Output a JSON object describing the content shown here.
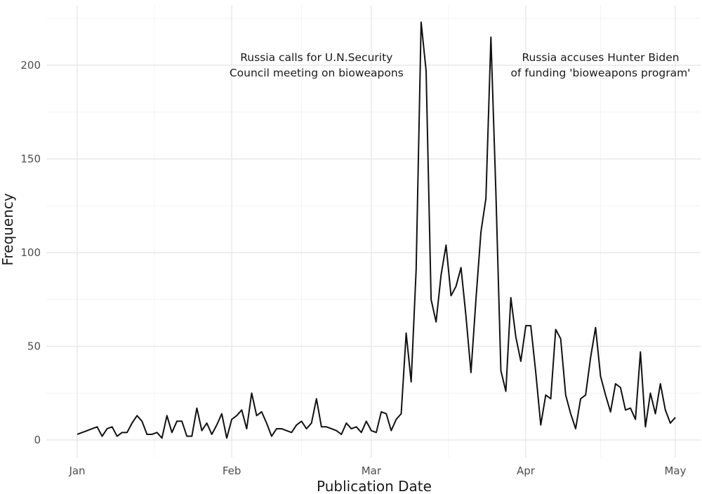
{
  "chart_data": {
    "type": "line",
    "xlabel": "Publication Date",
    "ylabel": "Frequency",
    "x_range": [
      "2022-01-01",
      "2022-04-30"
    ],
    "ylim": [
      0,
      225
    ],
    "grid": true,
    "x_ticks": [
      {
        "label": "Jan",
        "date": "2022-01-01"
      },
      {
        "label": "Feb",
        "date": "2022-02-01"
      },
      {
        "label": "Mar",
        "date": "2022-03-01"
      },
      {
        "label": "Apr",
        "date": "2022-04-01"
      },
      {
        "label": "May",
        "date": "2022-05-01"
      }
    ],
    "y_ticks": [
      0,
      50,
      100,
      150,
      200
    ],
    "annotations": [
      {
        "lines": [
          "Russia calls for U.N.Security",
          "Council meeting on bioweapons"
        ],
        "x": "2022-02-18",
        "y": 200
      },
      {
        "lines": [
          "Russia accuses Hunter Biden",
          "of funding 'bioweapons program'"
        ],
        "x": "2022-04-16",
        "y": 200
      }
    ],
    "series": [
      {
        "values": [
          {
            "x": "2022-01-01",
            "y": 3
          },
          {
            "x": "2022-01-02",
            "y": 4
          },
          {
            "x": "2022-01-03",
            "y": 5
          },
          {
            "x": "2022-01-04",
            "y": 6
          },
          {
            "x": "2022-01-05",
            "y": 7
          },
          {
            "x": "2022-01-06",
            "y": 2
          },
          {
            "x": "2022-01-07",
            "y": 6
          },
          {
            "x": "2022-01-08",
            "y": 7
          },
          {
            "x": "2022-01-09",
            "y": 2
          },
          {
            "x": "2022-01-10",
            "y": 4
          },
          {
            "x": "2022-01-11",
            "y": 4
          },
          {
            "x": "2022-01-12",
            "y": 9
          },
          {
            "x": "2022-01-13",
            "y": 13
          },
          {
            "x": "2022-01-14",
            "y": 10
          },
          {
            "x": "2022-01-15",
            "y": 3
          },
          {
            "x": "2022-01-16",
            "y": 3
          },
          {
            "x": "2022-01-17",
            "y": 4
          },
          {
            "x": "2022-01-18",
            "y": 1
          },
          {
            "x": "2022-01-19",
            "y": 13
          },
          {
            "x": "2022-01-20",
            "y": 4
          },
          {
            "x": "2022-01-21",
            "y": 10
          },
          {
            "x": "2022-01-22",
            "y": 10
          },
          {
            "x": "2022-01-23",
            "y": 2
          },
          {
            "x": "2022-01-24",
            "y": 2
          },
          {
            "x": "2022-01-25",
            "y": 17
          },
          {
            "x": "2022-01-26",
            "y": 5
          },
          {
            "x": "2022-01-27",
            "y": 9
          },
          {
            "x": "2022-01-28",
            "y": 3
          },
          {
            "x": "2022-01-29",
            "y": 8
          },
          {
            "x": "2022-01-30",
            "y": 14
          },
          {
            "x": "2022-01-31",
            "y": 1
          },
          {
            "x": "2022-02-01",
            "y": 11
          },
          {
            "x": "2022-02-02",
            "y": 13
          },
          {
            "x": "2022-02-03",
            "y": 16
          },
          {
            "x": "2022-02-04",
            "y": 6
          },
          {
            "x": "2022-02-05",
            "y": 25
          },
          {
            "x": "2022-02-06",
            "y": 13
          },
          {
            "x": "2022-02-07",
            "y": 15
          },
          {
            "x": "2022-02-08",
            "y": 9
          },
          {
            "x": "2022-02-09",
            "y": 2
          },
          {
            "x": "2022-02-10",
            "y": 6
          },
          {
            "x": "2022-02-11",
            "y": 6
          },
          {
            "x": "2022-02-12",
            "y": 5
          },
          {
            "x": "2022-02-13",
            "y": 4
          },
          {
            "x": "2022-02-14",
            "y": 8
          },
          {
            "x": "2022-02-15",
            "y": 10
          },
          {
            "x": "2022-02-16",
            "y": 6
          },
          {
            "x": "2022-02-17",
            "y": 9
          },
          {
            "x": "2022-02-18",
            "y": 22
          },
          {
            "x": "2022-02-19",
            "y": 7
          },
          {
            "x": "2022-02-20",
            "y": 7
          },
          {
            "x": "2022-02-21",
            "y": 6
          },
          {
            "x": "2022-02-22",
            "y": 5
          },
          {
            "x": "2022-02-23",
            "y": 3
          },
          {
            "x": "2022-02-24",
            "y": 9
          },
          {
            "x": "2022-02-25",
            "y": 6
          },
          {
            "x": "2022-02-26",
            "y": 7
          },
          {
            "x": "2022-02-27",
            "y": 4
          },
          {
            "x": "2022-02-28",
            "y": 10
          },
          {
            "x": "2022-03-01",
            "y": 5
          },
          {
            "x": "2022-03-02",
            "y": 4
          },
          {
            "x": "2022-03-03",
            "y": 15
          },
          {
            "x": "2022-03-04",
            "y": 14
          },
          {
            "x": "2022-03-05",
            "y": 5
          },
          {
            "x": "2022-03-06",
            "y": 11
          },
          {
            "x": "2022-03-07",
            "y": 14
          },
          {
            "x": "2022-03-08",
            "y": 57
          },
          {
            "x": "2022-03-09",
            "y": 31
          },
          {
            "x": "2022-03-10",
            "y": 91
          },
          {
            "x": "2022-03-11",
            "y": 223
          },
          {
            "x": "2022-03-12",
            "y": 197
          },
          {
            "x": "2022-03-13",
            "y": 75
          },
          {
            "x": "2022-03-14",
            "y": 63
          },
          {
            "x": "2022-03-15",
            "y": 88
          },
          {
            "x": "2022-03-16",
            "y": 104
          },
          {
            "x": "2022-03-17",
            "y": 77
          },
          {
            "x": "2022-03-18",
            "y": 82
          },
          {
            "x": "2022-03-19",
            "y": 92
          },
          {
            "x": "2022-03-20",
            "y": 66
          },
          {
            "x": "2022-03-21",
            "y": 36
          },
          {
            "x": "2022-03-22",
            "y": 75
          },
          {
            "x": "2022-03-23",
            "y": 111
          },
          {
            "x": "2022-03-24",
            "y": 129
          },
          {
            "x": "2022-03-25",
            "y": 215
          },
          {
            "x": "2022-03-26",
            "y": 132
          },
          {
            "x": "2022-03-27",
            "y": 37
          },
          {
            "x": "2022-03-28",
            "y": 26
          },
          {
            "x": "2022-03-29",
            "y": 76
          },
          {
            "x": "2022-03-30",
            "y": 55
          },
          {
            "x": "2022-03-31",
            "y": 42
          },
          {
            "x": "2022-04-01",
            "y": 61
          },
          {
            "x": "2022-04-02",
            "y": 61
          },
          {
            "x": "2022-04-03",
            "y": 36
          },
          {
            "x": "2022-04-04",
            "y": 8
          },
          {
            "x": "2022-04-05",
            "y": 24
          },
          {
            "x": "2022-04-06",
            "y": 22
          },
          {
            "x": "2022-04-07",
            "y": 59
          },
          {
            "x": "2022-04-08",
            "y": 54
          },
          {
            "x": "2022-04-09",
            "y": 24
          },
          {
            "x": "2022-04-10",
            "y": 14
          },
          {
            "x": "2022-04-11",
            "y": 6
          },
          {
            "x": "2022-04-12",
            "y": 22
          },
          {
            "x": "2022-04-13",
            "y": 24
          },
          {
            "x": "2022-04-14",
            "y": 44
          },
          {
            "x": "2022-04-15",
            "y": 60
          },
          {
            "x": "2022-04-16",
            "y": 34
          },
          {
            "x": "2022-04-17",
            "y": 24
          },
          {
            "x": "2022-04-18",
            "y": 15
          },
          {
            "x": "2022-04-19",
            "y": 30
          },
          {
            "x": "2022-04-20",
            "y": 28
          },
          {
            "x": "2022-04-21",
            "y": 16
          },
          {
            "x": "2022-04-22",
            "y": 17
          },
          {
            "x": "2022-04-23",
            "y": 11
          },
          {
            "x": "2022-04-24",
            "y": 47
          },
          {
            "x": "2022-04-25",
            "y": 7
          },
          {
            "x": "2022-04-26",
            "y": 25
          },
          {
            "x": "2022-04-27",
            "y": 14
          },
          {
            "x": "2022-04-28",
            "y": 30
          },
          {
            "x": "2022-04-29",
            "y": 16
          },
          {
            "x": "2022-04-30",
            "y": 9
          },
          {
            "x": "2022-05-01",
            "y": 12
          }
        ]
      }
    ]
  }
}
